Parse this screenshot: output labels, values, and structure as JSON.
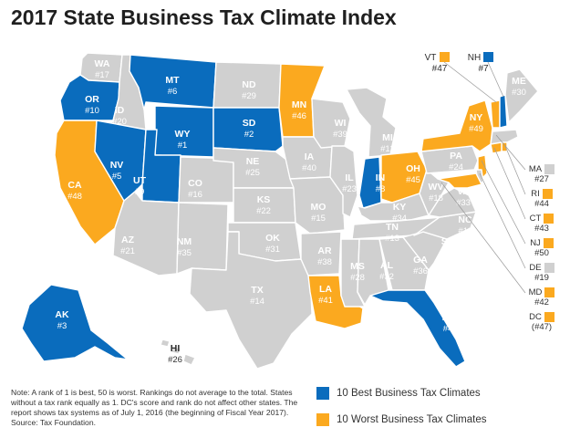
{
  "title": "2017 State Business Tax Climate Index",
  "colors": {
    "best": "#0a6cbd",
    "worst": "#fba91f",
    "neutral": "#d0d0d0",
    "border": "#ffffff"
  },
  "states": [
    {
      "abbr": "WA",
      "rank": "#17",
      "cat": "gray"
    },
    {
      "abbr": "OR",
      "rank": "#10",
      "cat": "blue"
    },
    {
      "abbr": "CA",
      "rank": "#48",
      "cat": "orange"
    },
    {
      "abbr": "ID",
      "rank": "#20",
      "cat": "gray"
    },
    {
      "abbr": "NV",
      "rank": "#5",
      "cat": "blue"
    },
    {
      "abbr": "MT",
      "rank": "#6",
      "cat": "blue"
    },
    {
      "abbr": "WY",
      "rank": "#1",
      "cat": "blue"
    },
    {
      "abbr": "UT",
      "rank": "#9",
      "cat": "blue"
    },
    {
      "abbr": "AZ",
      "rank": "#21",
      "cat": "gray"
    },
    {
      "abbr": "CO",
      "rank": "#16",
      "cat": "gray"
    },
    {
      "abbr": "NM",
      "rank": "#35",
      "cat": "gray"
    },
    {
      "abbr": "ND",
      "rank": "#29",
      "cat": "gray"
    },
    {
      "abbr": "SD",
      "rank": "#2",
      "cat": "blue"
    },
    {
      "abbr": "NE",
      "rank": "#25",
      "cat": "gray"
    },
    {
      "abbr": "KS",
      "rank": "#22",
      "cat": "gray"
    },
    {
      "abbr": "OK",
      "rank": "#31",
      "cat": "gray"
    },
    {
      "abbr": "TX",
      "rank": "#14",
      "cat": "gray"
    },
    {
      "abbr": "MN",
      "rank": "#46",
      "cat": "orange"
    },
    {
      "abbr": "IA",
      "rank": "#40",
      "cat": "gray"
    },
    {
      "abbr": "MO",
      "rank": "#15",
      "cat": "gray"
    },
    {
      "abbr": "AR",
      "rank": "#38",
      "cat": "gray"
    },
    {
      "abbr": "LA",
      "rank": "#41",
      "cat": "orange"
    },
    {
      "abbr": "WI",
      "rank": "#39",
      "cat": "gray"
    },
    {
      "abbr": "IL",
      "rank": "#23",
      "cat": "gray"
    },
    {
      "abbr": "MI",
      "rank": "#12",
      "cat": "gray"
    },
    {
      "abbr": "IN",
      "rank": "#8",
      "cat": "blue"
    },
    {
      "abbr": "OH",
      "rank": "#45",
      "cat": "orange"
    },
    {
      "abbr": "KY",
      "rank": "#34",
      "cat": "gray"
    },
    {
      "abbr": "TN",
      "rank": "#13",
      "cat": "gray"
    },
    {
      "abbr": "MS",
      "rank": "#28",
      "cat": "gray"
    },
    {
      "abbr": "AL",
      "rank": "#32",
      "cat": "gray"
    },
    {
      "abbr": "GA",
      "rank": "#36",
      "cat": "gray"
    },
    {
      "abbr": "FL",
      "rank": "#4",
      "cat": "blue"
    },
    {
      "abbr": "SC",
      "rank": "#37",
      "cat": "gray"
    },
    {
      "abbr": "NC",
      "rank": "#11",
      "cat": "gray"
    },
    {
      "abbr": "VA",
      "rank": "#33",
      "cat": "gray"
    },
    {
      "abbr": "WV",
      "rank": "#18",
      "cat": "gray"
    },
    {
      "abbr": "PA",
      "rank": "#24",
      "cat": "gray"
    },
    {
      "abbr": "NY",
      "rank": "#49",
      "cat": "orange"
    },
    {
      "abbr": "ME",
      "rank": "#30",
      "cat": "gray"
    },
    {
      "abbr": "AK",
      "rank": "#3",
      "cat": "blue"
    },
    {
      "abbr": "HI",
      "rank": "#26",
      "cat": "gray"
    }
  ],
  "callouts": {
    "VT": {
      "abbr": "VT",
      "rank": "#47",
      "cat": "orange"
    },
    "NH": {
      "abbr": "NH",
      "rank": "#7",
      "cat": "blue"
    }
  },
  "side_list": [
    {
      "abbr": "MA",
      "rank": "#27",
      "cat": "gray"
    },
    {
      "abbr": "RI",
      "rank": "#44",
      "cat": "orange"
    },
    {
      "abbr": "CT",
      "rank": "#43",
      "cat": "orange"
    },
    {
      "abbr": "NJ",
      "rank": "#50",
      "cat": "orange"
    },
    {
      "abbr": "DE",
      "rank": "#19",
      "cat": "gray"
    },
    {
      "abbr": "MD",
      "rank": "#42",
      "cat": "orange"
    },
    {
      "abbr": "DC",
      "rank": "(#47)",
      "cat": "orange"
    }
  ],
  "legend": [
    {
      "label": "10 Best Business Tax Climates",
      "cat": "blue"
    },
    {
      "label": "10 Worst Business Tax Climates",
      "cat": "orange"
    }
  ],
  "note": "Note: A rank of 1 is best, 50 is worst. Rankings do not average to the total. States without a tax rank equally as 1. DC's score and rank do not affect other states. The report shows tax systems as of July 1, 2016 (the beginning of Fiscal Year 2017).",
  "source": "Source: Tax Foundation."
}
